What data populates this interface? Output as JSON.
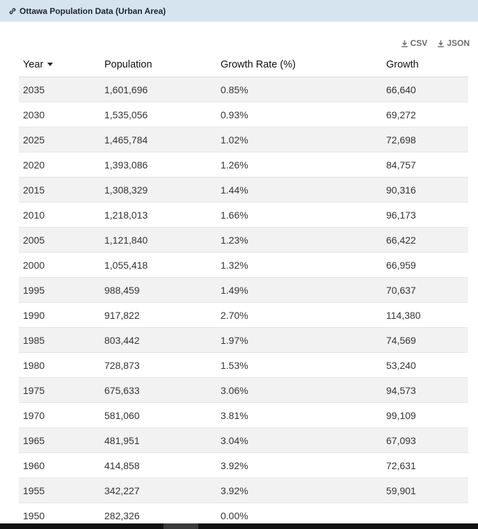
{
  "header": {
    "title": "Ottawa Population Data (Urban Area)"
  },
  "downloads": {
    "csv_label": "CSV",
    "json_label": "JSON"
  },
  "table": {
    "columns": [
      "Year",
      "Population",
      "Growth Rate (%)",
      "Growth"
    ],
    "rows": [
      {
        "year": "2035",
        "population": "1,601,696",
        "rate": "0.85%",
        "growth": "66,640"
      },
      {
        "year": "2030",
        "population": "1,535,056",
        "rate": "0.93%",
        "growth": "69,272"
      },
      {
        "year": "2025",
        "population": "1,465,784",
        "rate": "1.02%",
        "growth": "72,698"
      },
      {
        "year": "2020",
        "population": "1,393,086",
        "rate": "1.26%",
        "growth": "84,757"
      },
      {
        "year": "2015",
        "population": "1,308,329",
        "rate": "1.44%",
        "growth": "90,316"
      },
      {
        "year": "2010",
        "population": "1,218,013",
        "rate": "1.66%",
        "growth": "96,173"
      },
      {
        "year": "2005",
        "population": "1,121,840",
        "rate": "1.23%",
        "growth": "66,422"
      },
      {
        "year": "2000",
        "population": "1,055,418",
        "rate": "1.32%",
        "growth": "66,959"
      },
      {
        "year": "1995",
        "population": "988,459",
        "rate": "1.49%",
        "growth": "70,637"
      },
      {
        "year": "1990",
        "population": "917,822",
        "rate": "2.70%",
        "growth": "114,380"
      },
      {
        "year": "1985",
        "population": "803,442",
        "rate": "1.97%",
        "growth": "74,569"
      },
      {
        "year": "1980",
        "population": "728,873",
        "rate": "1.53%",
        "growth": "53,240"
      },
      {
        "year": "1975",
        "population": "675,633",
        "rate": "3.06%",
        "growth": "94,573"
      },
      {
        "year": "1970",
        "population": "581,060",
        "rate": "3.81%",
        "growth": "99,109"
      },
      {
        "year": "1965",
        "population": "481,951",
        "rate": "3.04%",
        "growth": "67,093"
      },
      {
        "year": "1960",
        "population": "414,858",
        "rate": "3.92%",
        "growth": "72,631"
      },
      {
        "year": "1955",
        "population": "342,227",
        "rate": "3.92%",
        "growth": "59,901"
      },
      {
        "year": "1950",
        "population": "282,326",
        "rate": "0.00%",
        "growth": ""
      }
    ]
  },
  "colors": {
    "header_bg": "#d6e4f0",
    "rate_positive": "#2e8b2e",
    "rate_zero": "#e23a3a",
    "row_stripe": "#f2f2f2"
  },
  "icons": {
    "header": "link-icon",
    "download": "download-icon",
    "sort": "sort-desc-icon"
  }
}
